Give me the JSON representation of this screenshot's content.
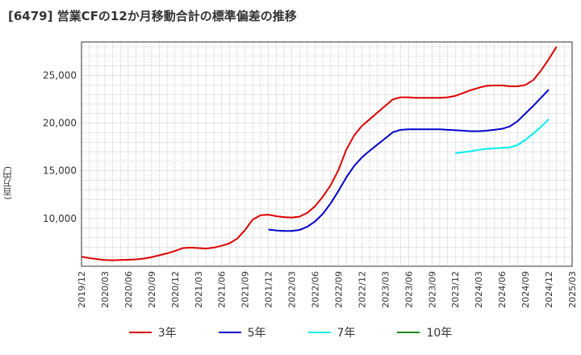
{
  "chart_data": {
    "type": "line",
    "title": "[6479]  営業CFの12か月移動合計の標準偏差の推移",
    "ylabel": "(百万円)",
    "xlabel": "",
    "ylim": [
      5000,
      28500
    ],
    "yticks": [
      10000,
      15000,
      20000,
      25000
    ],
    "ytick_labels": [
      "10,000",
      "15,000",
      "20,000",
      "25,000"
    ],
    "xlim": [
      "2019-12",
      "2025-03"
    ],
    "xtick_labels": [
      "2019/12",
      "2020/03",
      "2020/06",
      "2020/09",
      "2020/12",
      "2021/03",
      "2021/06",
      "2021/09",
      "2021/12",
      "2022/03",
      "2022/06",
      "2022/09",
      "2022/12",
      "2023/03",
      "2023/06",
      "2023/09",
      "2023/12",
      "2024/03",
      "2024/06",
      "2024/09",
      "2024/12",
      "2025/03"
    ],
    "grid": true,
    "legend_position": "bottom",
    "series": [
      {
        "name": "3年",
        "color": "#dd0000",
        "points": [
          [
            "2019-12",
            6000
          ],
          [
            "2020-01",
            5850
          ],
          [
            "2020-02",
            5750
          ],
          [
            "2020-03",
            5650
          ],
          [
            "2020-04",
            5620
          ],
          [
            "2020-05",
            5650
          ],
          [
            "2020-06",
            5680
          ],
          [
            "2020-07",
            5720
          ],
          [
            "2020-08",
            5800
          ],
          [
            "2020-09",
            5950
          ],
          [
            "2020-10",
            6150
          ],
          [
            "2020-11",
            6350
          ],
          [
            "2020-12",
            6600
          ],
          [
            "2021-01",
            6900
          ],
          [
            "2021-02",
            6950
          ],
          [
            "2021-03",
            6900
          ],
          [
            "2021-04",
            6850
          ],
          [
            "2021-05",
            6950
          ],
          [
            "2021-06",
            7150
          ],
          [
            "2021-07",
            7400
          ],
          [
            "2021-08",
            7900
          ],
          [
            "2021-09",
            8800
          ],
          [
            "2021-10",
            9900
          ],
          [
            "2021-11",
            10350
          ],
          [
            "2021-12",
            10400
          ],
          [
            "2022-01",
            10250
          ],
          [
            "2022-02",
            10150
          ],
          [
            "2022-03",
            10100
          ],
          [
            "2022-04",
            10200
          ],
          [
            "2022-05",
            10600
          ],
          [
            "2022-06",
            11300
          ],
          [
            "2022-07",
            12300
          ],
          [
            "2022-08",
            13500
          ],
          [
            "2022-09",
            15100
          ],
          [
            "2022-10",
            17200
          ],
          [
            "2022-11",
            18700
          ],
          [
            "2022-12",
            19700
          ],
          [
            "2023-01",
            20400
          ],
          [
            "2023-02",
            21100
          ],
          [
            "2023-03",
            21800
          ],
          [
            "2023-04",
            22500
          ],
          [
            "2023-05",
            22700
          ],
          [
            "2023-06",
            22700
          ],
          [
            "2023-07",
            22650
          ],
          [
            "2023-08",
            22650
          ],
          [
            "2023-09",
            22650
          ],
          [
            "2023-10",
            22650
          ],
          [
            "2023-11",
            22700
          ],
          [
            "2023-12",
            22850
          ],
          [
            "2023-13",
            23150
          ],
          [
            "2024-02",
            23450
          ],
          [
            "2024-03",
            23700
          ],
          [
            "2024-04",
            23900
          ],
          [
            "2024-05",
            23950
          ],
          [
            "2024-06",
            23950
          ],
          [
            "2024-07",
            23850
          ],
          [
            "2024-08",
            23850
          ],
          [
            "2024-09",
            24000
          ],
          [
            "2024-10",
            24500
          ],
          [
            "2024-11",
            25500
          ],
          [
            "2024-12",
            26700
          ],
          [
            "2025-01",
            28000
          ]
        ]
      },
      {
        "name": "5年",
        "color": "#0000cc",
        "points": [
          [
            "2021-12",
            8850
          ],
          [
            "2022-01",
            8750
          ],
          [
            "2022-02",
            8700
          ],
          [
            "2022-03",
            8700
          ],
          [
            "2022-04",
            8800
          ],
          [
            "2022-05",
            9150
          ],
          [
            "2022-06",
            9700
          ],
          [
            "2022-07",
            10500
          ],
          [
            "2022-08",
            11600
          ],
          [
            "2022-09",
            12900
          ],
          [
            "2022-10",
            14300
          ],
          [
            "2022-11",
            15500
          ],
          [
            "2022-12",
            16400
          ],
          [
            "2023-01",
            17100
          ],
          [
            "2023-02",
            17750
          ],
          [
            "2023-03",
            18400
          ],
          [
            "2023-04",
            19050
          ],
          [
            "2023-05",
            19300
          ],
          [
            "2023-06",
            19350
          ],
          [
            "2023-07",
            19350
          ],
          [
            "2023-08",
            19350
          ],
          [
            "2023-09",
            19350
          ],
          [
            "2023-10",
            19350
          ],
          [
            "2023-11",
            19300
          ],
          [
            "2023-12",
            19250
          ],
          [
            "2024-01",
            19200
          ],
          [
            "2024-02",
            19150
          ],
          [
            "2024-03",
            19150
          ],
          [
            "2024-04",
            19200
          ],
          [
            "2024-05",
            19300
          ],
          [
            "2024-06",
            19400
          ],
          [
            "2024-07",
            19650
          ],
          [
            "2024-08",
            20200
          ],
          [
            "2024-09",
            21000
          ],
          [
            "2024-10",
            21800
          ],
          [
            "2024-11",
            22650
          ],
          [
            "2024-12",
            23500
          ]
        ]
      },
      {
        "name": "7年",
        "color": "#00eeee",
        "points": [
          [
            "2023-12",
            16850
          ],
          [
            "2024-01",
            16950
          ],
          [
            "2024-02",
            17050
          ],
          [
            "2024-03",
            17200
          ],
          [
            "2024-04",
            17300
          ],
          [
            "2024-05",
            17350
          ],
          [
            "2024-06",
            17400
          ],
          [
            "2024-07",
            17450
          ],
          [
            "2024-08",
            17700
          ],
          [
            "2024-09",
            18250
          ],
          [
            "2024-10",
            18900
          ],
          [
            "2024-11",
            19600
          ],
          [
            "2024-12",
            20400
          ]
        ]
      },
      {
        "name": "10年",
        "color": "#228822",
        "points": []
      }
    ]
  }
}
